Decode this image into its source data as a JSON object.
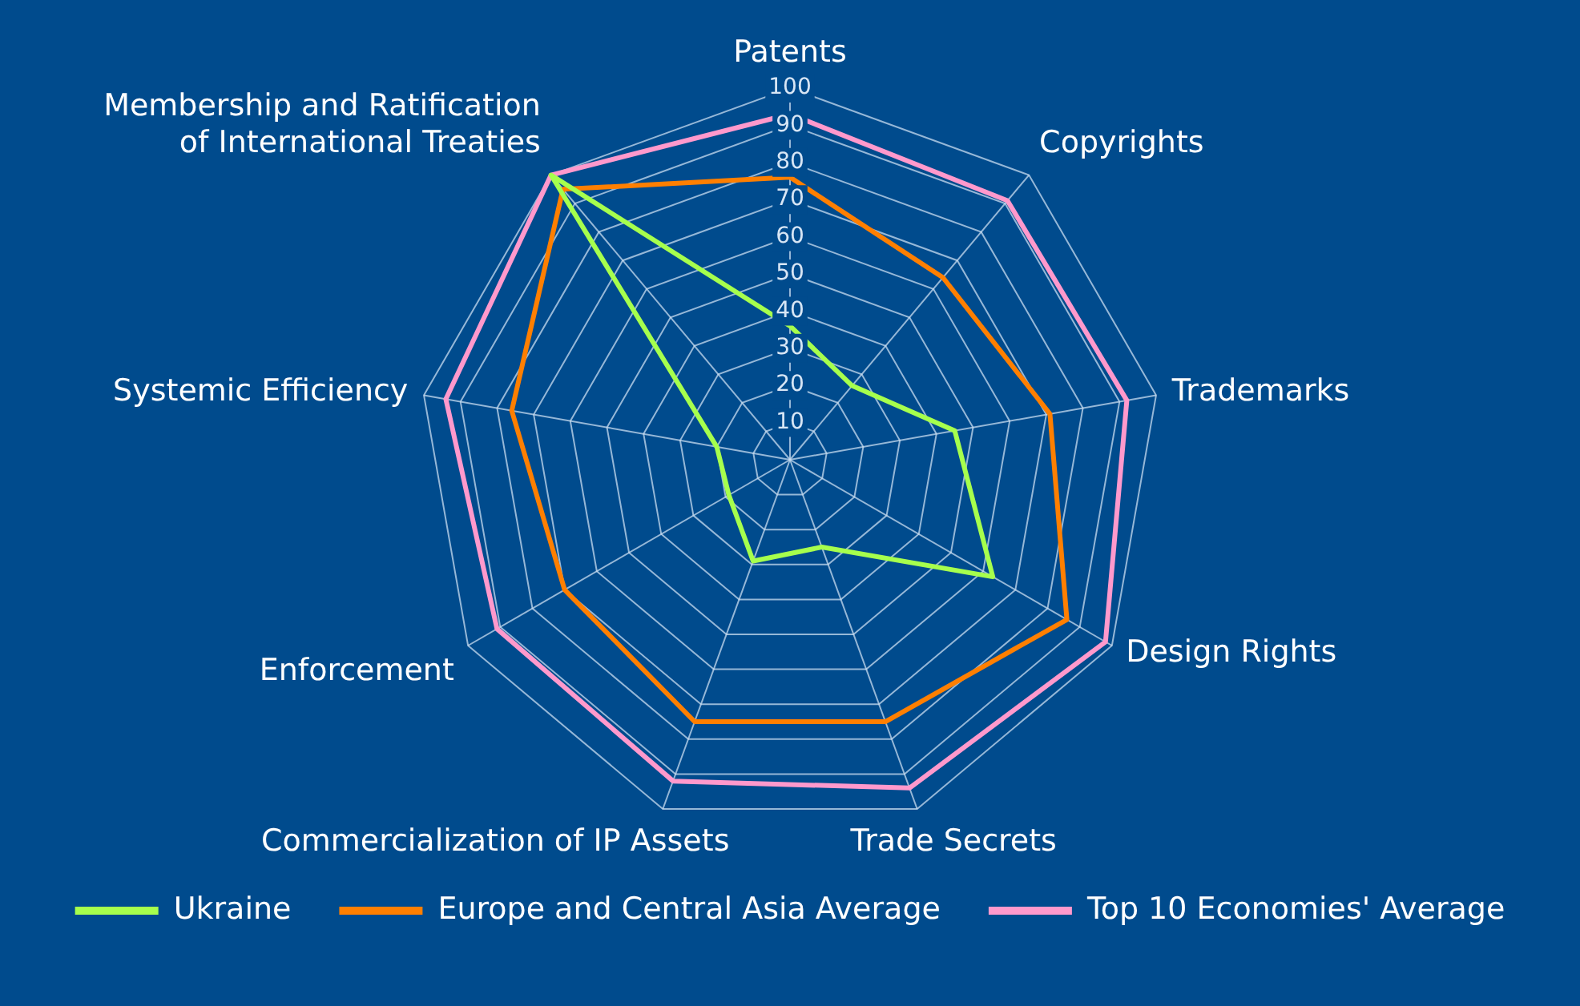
{
  "chart_data": {
    "type": "radar",
    "categories": [
      "Patents",
      "Copyrights",
      "Trademarks",
      "Design Rights",
      "Trade Secrets",
      "Commercialization of IP Assets",
      "Enforcement",
      "Systemic Efficiency",
      "Membership and Ratification of International Treaties"
    ],
    "series": [
      {
        "name": "Ukraine",
        "color": "#a6ff4d",
        "values": [
          36,
          26,
          45,
          63,
          25,
          29,
          19,
          20,
          100
        ]
      },
      {
        "name": "Europe and Central Asia Average",
        "color": "#ff7f00",
        "values": [
          76,
          64,
          71,
          86,
          75,
          75,
          70,
          76,
          95
        ]
      },
      {
        "name": "Top 10 Economies' Average",
        "color": "#ff99cc",
        "values": [
          93,
          91,
          92,
          98,
          94,
          92,
          91,
          94,
          100
        ]
      }
    ],
    "ylim": [
      0,
      100
    ],
    "yticks": [
      10,
      20,
      30,
      40,
      50,
      60,
      70,
      80,
      90,
      100
    ],
    "grid": true,
    "legend": "bottom",
    "marker": "none",
    "line_style": "solid"
  }
}
